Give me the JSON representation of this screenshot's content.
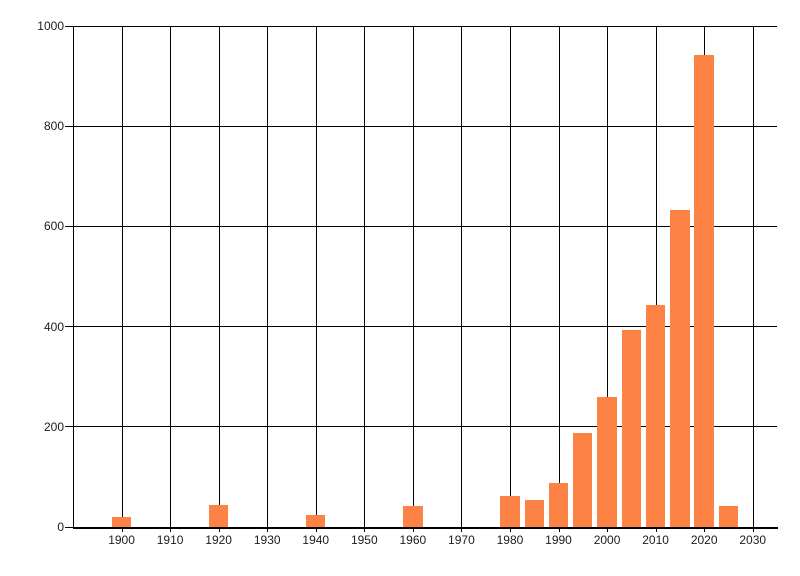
{
  "chart_data": {
    "type": "bar",
    "title": "",
    "xlabel": "",
    "ylabel": "",
    "x": [
      1900,
      1920,
      1940,
      1960,
      1980,
      1985,
      1990,
      1995,
      2000,
      2005,
      2010,
      2015,
      2020,
      2025
    ],
    "values": [
      20,
      44,
      23,
      41,
      62,
      54,
      87,
      188,
      259,
      394,
      444,
      632,
      943,
      41
    ],
    "bar_width_years": 4,
    "xlim": [
      1890,
      2035
    ],
    "ylim": [
      0,
      1000
    ],
    "x_tick_labels": [
      "1900",
      "1910",
      "1920",
      "1930",
      "1940",
      "1950",
      "1960",
      "1970",
      "1980",
      "1990",
      "2000",
      "2010",
      "2020",
      "2030"
    ],
    "x_tick_values": [
      1900,
      1910,
      1920,
      1930,
      1940,
      1950,
      1960,
      1970,
      1980,
      1990,
      2000,
      2010,
      2020,
      2030
    ],
    "y_tick_labels": [
      "0",
      "200",
      "400",
      "600",
      "800",
      "1000"
    ],
    "y_tick_values": [
      0,
      200,
      400,
      600,
      800,
      1000
    ],
    "grid": true,
    "legend": null,
    "colors": {
      "bar": "#fd8245",
      "grid": "#000000",
      "axis": "#000000",
      "label": "#1c1c1c",
      "background": "#ffffff"
    }
  }
}
